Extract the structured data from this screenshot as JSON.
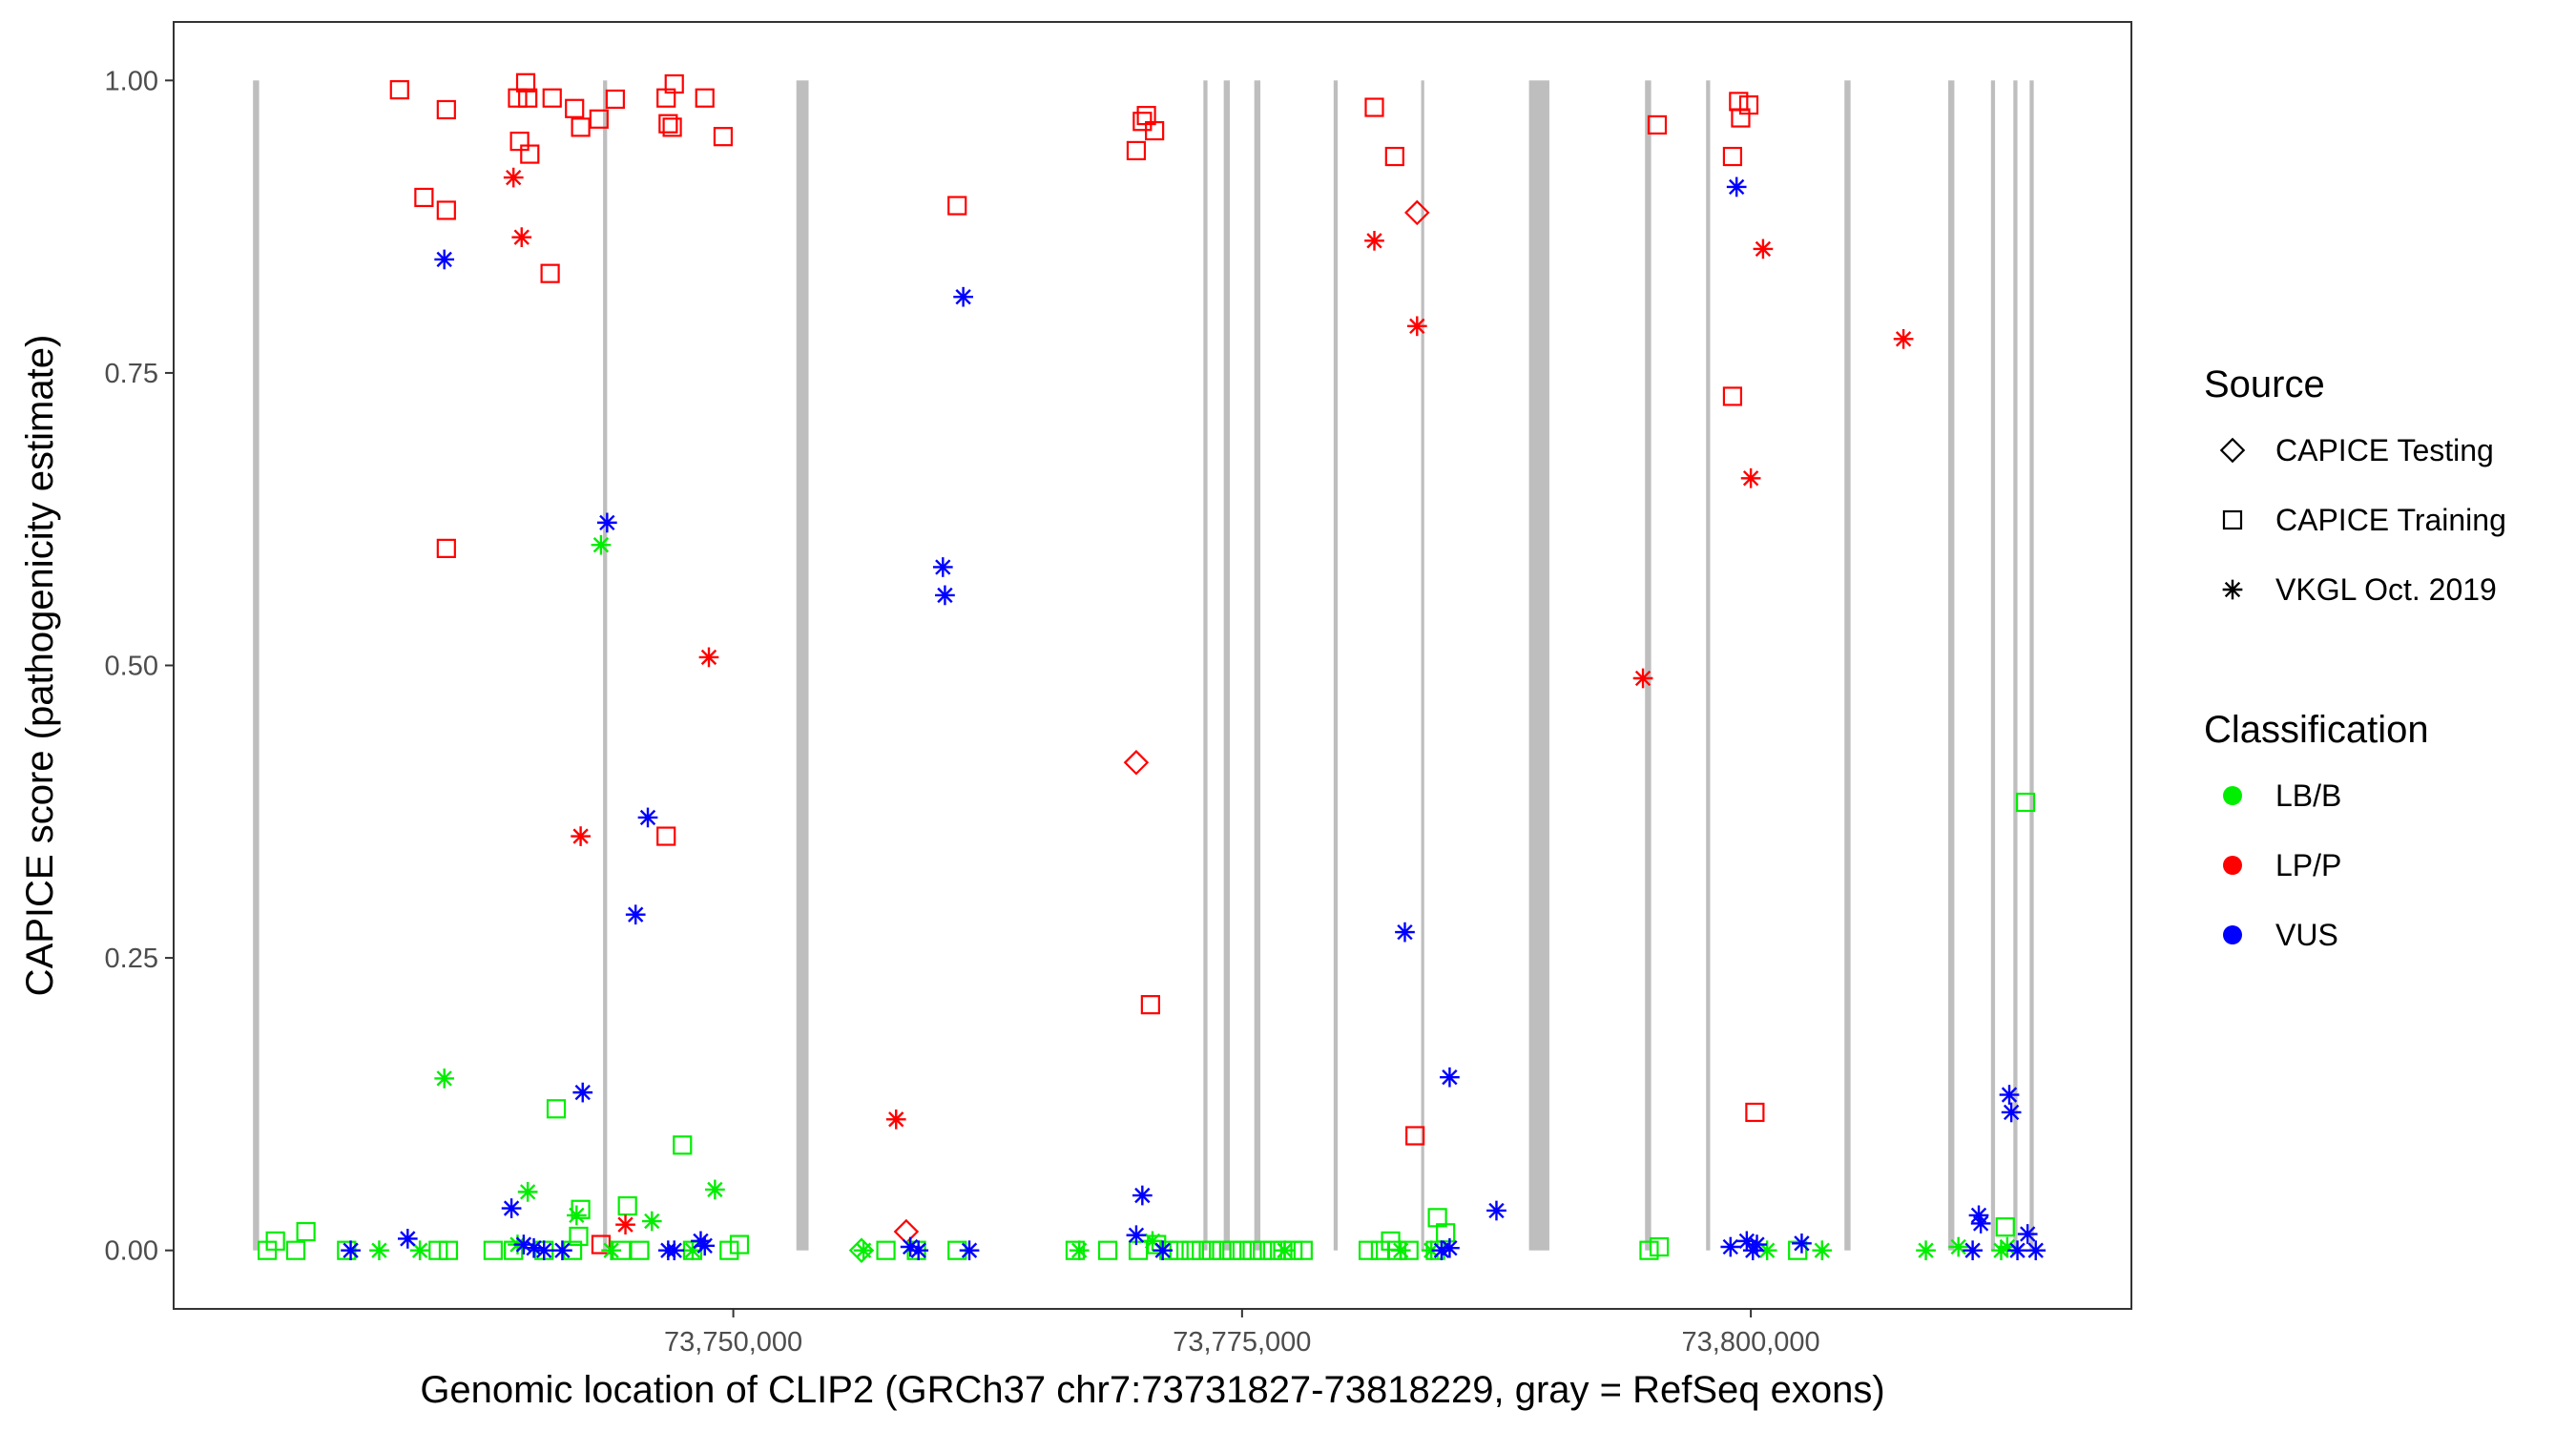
{
  "colors": {
    "LB/B": "#00ee00",
    "LP/P": "#ff0000",
    "VUS": "#0000ff",
    "exon": "#bebebe",
    "panel_border": "#333333"
  },
  "legend": {
    "source_title": "Source",
    "source_items": [
      {
        "label": "CAPICE Testing",
        "shape": "diamond"
      },
      {
        "label": "CAPICE Training",
        "shape": "square"
      },
      {
        "label": "VKGL Oct. 2019",
        "shape": "asterisk"
      }
    ],
    "class_title": "Classification",
    "class_items": [
      {
        "label": "LB/B",
        "key": "LB/B"
      },
      {
        "label": "LP/P",
        "key": "LP/P"
      },
      {
        "label": "VUS",
        "key": "VUS"
      }
    ]
  },
  "chart_data": {
    "type": "scatter",
    "xlabel": "Genomic location of CLIP2 (GRCh37 chr7:73731827-73818229, gray = RefSeq exons)",
    "ylabel": "CAPICE score (pathogenicity estimate)",
    "xlim": [
      73722500,
      73818700
    ],
    "ylim": [
      -0.05,
      1.05
    ],
    "x_ticks": [
      {
        "value": 73750000,
        "label": "73,750,000"
      },
      {
        "value": 73775000,
        "label": "73,775,000"
      },
      {
        "value": 73800000,
        "label": "73,800,000"
      }
    ],
    "y_ticks": [
      {
        "value": 0.0,
        "label": "0.00"
      },
      {
        "value": 0.25,
        "label": "0.25"
      },
      {
        "value": 0.5,
        "label": "0.50"
      },
      {
        "value": 0.75,
        "label": "0.75"
      },
      {
        "value": 1.0,
        "label": "1.00"
      }
    ],
    "grid": false,
    "legend_position": "right",
    "exons": [
      [
        73726400,
        73726700
      ],
      [
        73743600,
        73743800
      ],
      [
        73753100,
        73753700
      ],
      [
        73773100,
        73773300
      ],
      [
        73774100,
        73774400
      ],
      [
        73775600,
        73775900
      ],
      [
        73779500,
        73779700
      ],
      [
        73783800,
        73783950
      ],
      [
        73789100,
        73790100
      ],
      [
        73794800,
        73795100
      ],
      [
        73797800,
        73798000
      ],
      [
        73804600,
        73804900
      ],
      [
        73809700,
        73810000
      ],
      [
        73811800,
        73812000
      ],
      [
        73812900,
        73813100
      ],
      [
        73813700,
        73813900
      ]
    ],
    "series": [
      {
        "source": "CAPICE Testing",
        "classification": "LP/P",
        "points": [
          [
            73783600,
            0.887
          ],
          [
            73769800,
            0.417
          ],
          [
            73758500,
            0.016
          ]
        ]
      },
      {
        "source": "CAPICE Testing",
        "classification": "LB/B",
        "points": [
          [
            73756300,
            0.0
          ]
        ]
      },
      {
        "source": "CAPICE Training",
        "classification": "LP/P",
        "points": [
          [
            73733600,
            0.992
          ],
          [
            73735900,
            0.975
          ],
          [
            73734800,
            0.9
          ],
          [
            73735900,
            0.889
          ],
          [
            73735900,
            0.6
          ],
          [
            73739400,
            0.985
          ],
          [
            73739800,
            0.998
          ],
          [
            73739900,
            0.985
          ],
          [
            73739500,
            0.948
          ],
          [
            73740000,
            0.937
          ],
          [
            73741100,
            0.985
          ],
          [
            73742200,
            0.976
          ],
          [
            73742500,
            0.96
          ],
          [
            73743400,
            0.967
          ],
          [
            73744200,
            0.984
          ],
          [
            73741000,
            0.835
          ],
          [
            73746700,
            0.985
          ],
          [
            73746800,
            0.963
          ],
          [
            73747100,
            0.997
          ],
          [
            73747000,
            0.96
          ],
          [
            73748600,
            0.985
          ],
          [
            73749500,
            0.952
          ],
          [
            73746700,
            0.354
          ],
          [
            73743500,
            0.005
          ],
          [
            73761000,
            0.893
          ],
          [
            73769800,
            0.94
          ],
          [
            73770100,
            0.965
          ],
          [
            73770300,
            0.97
          ],
          [
            73770700,
            0.957
          ],
          [
            73770500,
            0.21
          ],
          [
            73781500,
            0.977
          ],
          [
            73782500,
            0.935
          ],
          [
            73783500,
            0.098
          ],
          [
            73795400,
            0.962
          ],
          [
            73799100,
            0.935
          ],
          [
            73799400,
            0.982
          ],
          [
            73799500,
            0.968
          ],
          [
            73799900,
            0.979
          ],
          [
            73799100,
            0.73
          ],
          [
            73800200,
            0.118
          ]
        ]
      },
      {
        "source": "CAPICE Training",
        "classification": "LB/B",
        "points": [
          [
            73727100,
            0.0
          ],
          [
            73727500,
            0.008
          ],
          [
            73728500,
            0.0
          ],
          [
            73729000,
            0.016
          ],
          [
            73731000,
            0.0
          ],
          [
            73735500,
            0.0
          ],
          [
            73736000,
            0.0
          ],
          [
            73738200,
            0.0
          ],
          [
            73739200,
            0.0
          ],
          [
            73740700,
            0.0
          ],
          [
            73741300,
            0.121
          ],
          [
            73742100,
            0.0
          ],
          [
            73742400,
            0.012
          ],
          [
            73742500,
            0.035
          ],
          [
            73744800,
            0.038
          ],
          [
            73744500,
            0.0
          ],
          [
            73745400,
            0.0
          ],
          [
            73747500,
            0.09
          ],
          [
            73748000,
            0.0
          ],
          [
            73749800,
            0.0
          ],
          [
            73750300,
            0.005
          ],
          [
            73757500,
            0.0
          ],
          [
            73759000,
            0.0
          ],
          [
            73761000,
            0.0
          ],
          [
            73766800,
            0.0
          ],
          [
            73768400,
            0.0
          ],
          [
            73769900,
            0.0
          ],
          [
            73770800,
            0.005
          ],
          [
            73771400,
            0.0
          ],
          [
            73771900,
            0.0
          ],
          [
            73772500,
            0.0
          ],
          [
            73773000,
            0.0
          ],
          [
            73773500,
            0.0
          ],
          [
            73774000,
            0.0
          ],
          [
            73774500,
            0.0
          ],
          [
            73775000,
            0.0
          ],
          [
            73775500,
            0.0
          ],
          [
            73776000,
            0.0
          ],
          [
            73776500,
            0.0
          ],
          [
            73777000,
            0.0
          ],
          [
            73777500,
            0.0
          ],
          [
            73778000,
            0.0
          ],
          [
            73782300,
            0.008
          ],
          [
            73781200,
            0.0
          ],
          [
            73781800,
            0.0
          ],
          [
            73782600,
            0.0
          ],
          [
            73783200,
            0.0
          ],
          [
            73784500,
            0.0
          ],
          [
            73784600,
            0.028
          ],
          [
            73785000,
            0.015
          ],
          [
            73795000,
            0.0
          ],
          [
            73795500,
            0.003
          ],
          [
            73802300,
            0.0
          ],
          [
            73812500,
            0.02
          ],
          [
            73813500,
            0.383
          ]
        ]
      },
      {
        "source": "VKGL Oct. 2019",
        "classification": "LP/P",
        "points": [
          [
            73739200,
            0.917
          ],
          [
            73739600,
            0.866
          ],
          [
            73742500,
            0.354
          ],
          [
            73744700,
            0.022
          ],
          [
            73748800,
            0.507
          ],
          [
            73758000,
            0.112
          ],
          [
            73781500,
            0.863
          ],
          [
            73783600,
            0.79
          ],
          [
            73794700,
            0.489
          ],
          [
            73800000,
            0.66
          ],
          [
            73800600,
            0.856
          ],
          [
            73807500,
            0.779
          ]
        ]
      },
      {
        "source": "VKGL Oct. 2019",
        "classification": "LB/B",
        "points": [
          [
            73732600,
            0.0
          ],
          [
            73734600,
            0.0
          ],
          [
            73735800,
            0.147
          ],
          [
            73739400,
            0.005
          ],
          [
            73739900,
            0.05
          ],
          [
            73742300,
            0.03
          ],
          [
            73743500,
            0.603
          ],
          [
            73744000,
            0.0
          ],
          [
            73746000,
            0.025
          ],
          [
            73749100,
            0.052
          ],
          [
            73748000,
            0.0
          ],
          [
            73756400,
            0.0
          ],
          [
            73767000,
            0.0
          ],
          [
            73770600,
            0.008
          ],
          [
            73777100,
            0.0
          ],
          [
            73782800,
            0.0
          ],
          [
            73784300,
            0.0
          ],
          [
            73800800,
            0.0
          ],
          [
            73803500,
            0.0
          ],
          [
            73808600,
            0.0
          ],
          [
            73810200,
            0.003
          ],
          [
            73812300,
            0.0
          ],
          [
            73812600,
            0.003
          ]
        ]
      },
      {
        "source": "VKGL Oct. 2019",
        "classification": "VUS",
        "points": [
          [
            73731200,
            0.0
          ],
          [
            73734000,
            0.01
          ],
          [
            73735800,
            0.847
          ],
          [
            73739100,
            0.036
          ],
          [
            73739700,
            0.005
          ],
          [
            73740200,
            0.002
          ],
          [
            73740700,
            0.0
          ],
          [
            73741600,
            0.0
          ],
          [
            73742600,
            0.135
          ],
          [
            73743800,
            0.622
          ],
          [
            73745200,
            0.287
          ],
          [
            73745800,
            0.37
          ],
          [
            73746800,
            0.0
          ],
          [
            73747100,
            0.0
          ],
          [
            73748400,
            0.008
          ],
          [
            73748600,
            0.004
          ],
          [
            73758700,
            0.003
          ],
          [
            73759100,
            0.0
          ],
          [
            73760300,
            0.584
          ],
          [
            73760400,
            0.56
          ],
          [
            73761300,
            0.815
          ],
          [
            73761600,
            0.0
          ],
          [
            73769800,
            0.013
          ],
          [
            73770100,
            0.047
          ],
          [
            73771100,
            0.0
          ],
          [
            73783000,
            0.272
          ],
          [
            73785200,
            0.148
          ],
          [
            73785200,
            0.002
          ],
          [
            73784800,
            0.0
          ],
          [
            73787500,
            0.034
          ],
          [
            73799000,
            0.003
          ],
          [
            73799300,
            0.909
          ],
          [
            73799800,
            0.008
          ],
          [
            73800100,
            0.0
          ],
          [
            73800300,
            0.005
          ],
          [
            73802500,
            0.006
          ],
          [
            73810900,
            0.0
          ],
          [
            73811200,
            0.03
          ],
          [
            73811300,
            0.023
          ],
          [
            73812700,
            0.133
          ],
          [
            73812800,
            0.118
          ],
          [
            73813100,
            0.0
          ],
          [
            73813600,
            0.014
          ],
          [
            73814000,
            0.0
          ]
        ]
      }
    ]
  }
}
